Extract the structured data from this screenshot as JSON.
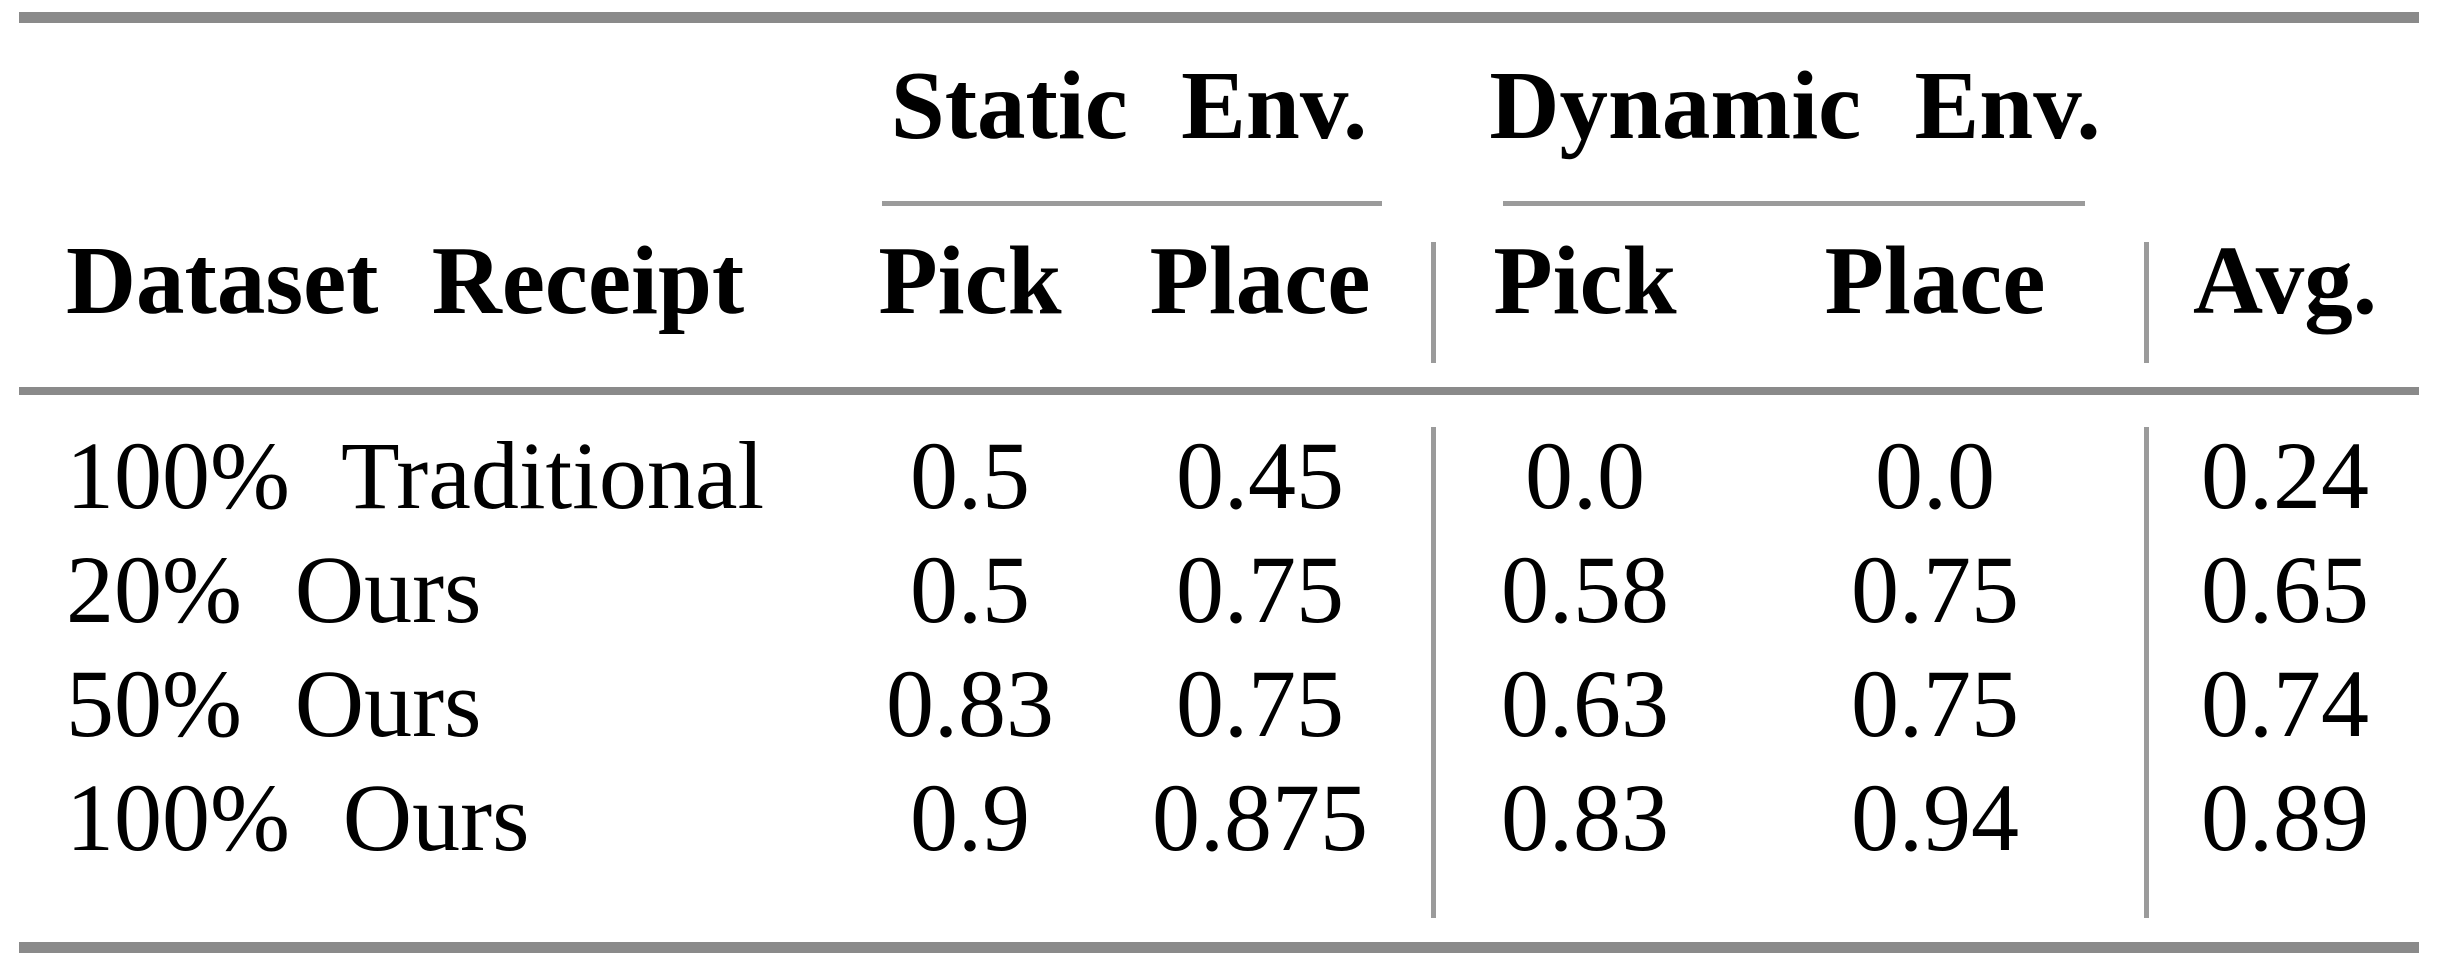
{
  "table": {
    "group_headers": [
      {
        "label": "Static Env."
      },
      {
        "label": "Dynamic Env."
      }
    ],
    "column_headers": {
      "dataset": "Dataset Receipt",
      "static_pick": "Pick",
      "static_place": "Place",
      "dynamic_pick": "Pick",
      "dynamic_place": "Place",
      "avg": "Avg."
    },
    "rows": [
      {
        "label": "100% Traditional",
        "static_pick": "0.5",
        "static_place": "0.45",
        "dynamic_pick": "0.0",
        "dynamic_place": "0.0",
        "avg": "0.24"
      },
      {
        "label": "20% Ours",
        "static_pick": "0.5",
        "static_place": "0.75",
        "dynamic_pick": "0.58",
        "dynamic_place": "0.75",
        "avg": "0.65"
      },
      {
        "label": "50% Ours",
        "static_pick": "0.83",
        "static_place": "0.75",
        "dynamic_pick": "0.63",
        "dynamic_place": "0.75",
        "avg": "0.74"
      },
      {
        "label": "100% Ours",
        "static_pick": "0.9",
        "static_place": "0.875",
        "dynamic_pick": "0.83",
        "dynamic_place": "0.94",
        "avg": "0.89"
      }
    ],
    "colors": {
      "text": "#000000",
      "heavy_rule": "#8a8a8a",
      "light_rule": "#9b9b9b",
      "background": "#ffffff"
    }
  },
  "chart_data": {
    "type": "table",
    "columns": [
      "Dataset Receipt",
      "Static Env. Pick",
      "Static Env. Place",
      "Dynamic Env. Pick",
      "Dynamic Env. Place",
      "Avg."
    ],
    "rows": [
      [
        "100% Traditional",
        0.5,
        0.45,
        0.0,
        0.0,
        0.24
      ],
      [
        "20% Ours",
        0.5,
        0.75,
        0.58,
        0.75,
        0.65
      ],
      [
        "50% Ours",
        0.83,
        0.75,
        0.63,
        0.75,
        0.74
      ],
      [
        "100% Ours",
        0.9,
        0.875,
        0.83,
        0.94,
        0.89
      ]
    ]
  }
}
